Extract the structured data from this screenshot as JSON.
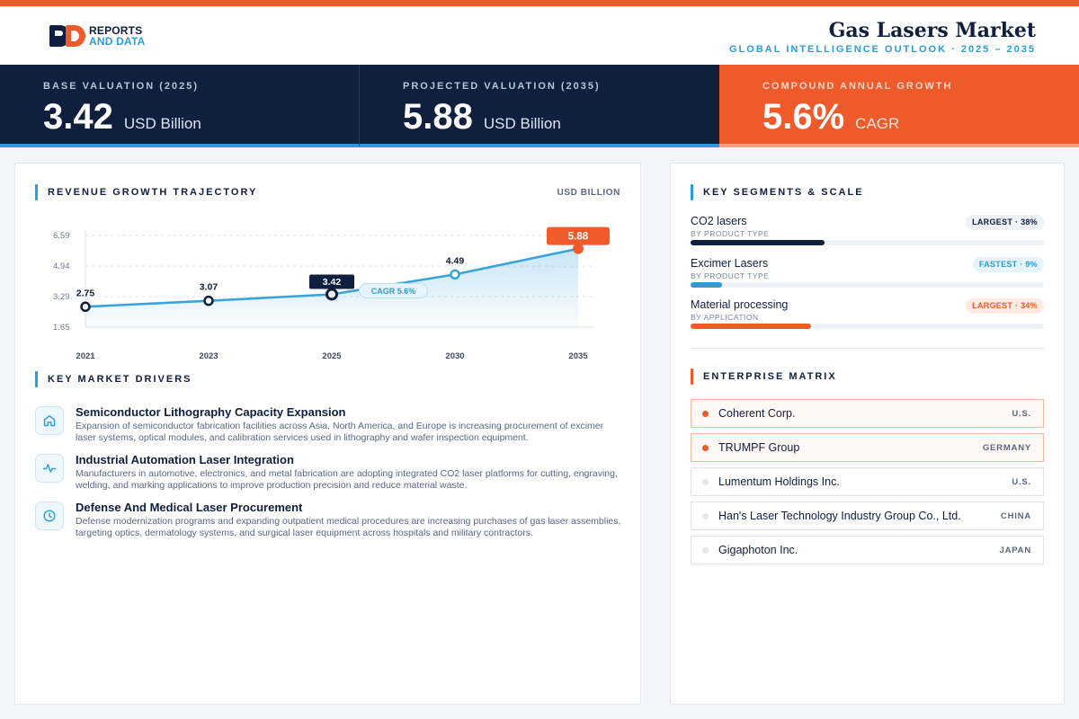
{
  "brand": {
    "line1": "REPORTS",
    "line2": "AND DATA"
  },
  "header": {
    "title": "Gas Lasers Market",
    "subtitle": "GLOBAL INTELLIGENCE OUTLOOK  ·  2025 – 2035"
  },
  "kpis": [
    {
      "label": "BASE VALUATION (2025)",
      "value": "3.42",
      "unit": "USD Billion"
    },
    {
      "label": "PROJECTED VALUATION (2035)",
      "value": "5.88",
      "unit": "USD Billion"
    },
    {
      "label": "COMPOUND ANNUAL GROWTH",
      "value": "5.6%",
      "unit": "CAGR"
    }
  ],
  "revenue": {
    "title": "REVENUE GROWTH TRAJECTORY",
    "units": "USD BILLION",
    "cagr_label": "CAGR 5.6%"
  },
  "chart_data": {
    "type": "area",
    "x": [
      "2021",
      "2023",
      "2025",
      "2030",
      "2035"
    ],
    "y": [
      2.75,
      3.07,
      3.42,
      4.49,
      5.88
    ],
    "data_labels": [
      "2.75",
      "3.07",
      "3.42",
      "4.49",
      "5.88"
    ],
    "yticks": [
      "6.59",
      "4.94",
      "3.29",
      "1.65"
    ],
    "ytick_values": [
      6.59,
      4.94,
      3.29,
      1.65
    ],
    "ylim": [
      1.65,
      6.59
    ],
    "grid": true,
    "legend": "none",
    "colors": {
      "line": "#3aa3d9",
      "highlight": "#0f1f3d",
      "final": "#ef5a2a"
    }
  },
  "drivers": {
    "title": "KEY MARKET DRIVERS",
    "items": [
      {
        "icon": "home-icon",
        "title": "Semiconductor Lithography Capacity Expansion",
        "desc": "Expansion of semiconductor fabrication facilities across Asia, North America, and Europe is increasing procurement of excimer laser systems, optical modules, and calibration services used in lithography and wafer inspection equipment."
      },
      {
        "icon": "activity-icon",
        "title": "Industrial Automation Laser Integration",
        "desc": "Manufacturers in automotive, electronics, and metal fabrication are adopting integrated CO2 laser platforms for cutting, engraving, welding, and marking applications to improve production precision and reduce material waste."
      },
      {
        "icon": "clock-icon",
        "title": "Defense And Medical Laser Procurement",
        "desc": "Defense modernization programs and expanding outpatient medical procedures are increasing purchases of gas laser assemblies, targeting optics, dermatology systems, and surgical laser equipment across hospitals and military contractors."
      }
    ]
  },
  "segments": {
    "title": "KEY SEGMENTS & SCALE",
    "items": [
      {
        "name": "CO2 lasers",
        "by": "BY PRODUCT TYPE",
        "badge": "LARGEST · 38%",
        "share": 0.38,
        "color": "#0f1f3d",
        "badge_style": "gray"
      },
      {
        "name": "Excimer Lasers",
        "by": "BY PRODUCT TYPE",
        "badge": "FASTEST · 9%",
        "share": 0.09,
        "color": "#2d9bd6",
        "badge_style": "blue"
      },
      {
        "name": "Material processing",
        "by": "BY APPLICATION",
        "badge": "LARGEST · 34%",
        "share": 0.34,
        "color": "#ef5a2a",
        "badge_style": "orange"
      }
    ]
  },
  "enterprise": {
    "title": "ENTERPRISE MATRIX",
    "items": [
      {
        "name": "Coherent Corp.",
        "country": "U.S.",
        "highlight": true
      },
      {
        "name": "TRUMPF Group",
        "country": "GERMANY",
        "highlight": true
      },
      {
        "name": "Lumentum Holdings Inc.",
        "country": "U.S.",
        "highlight": false
      },
      {
        "name": "Han's Laser Technology Industry Group Co., Ltd.",
        "country": "CHINA",
        "highlight": false
      },
      {
        "name": "Gigaphoton Inc.",
        "country": "JAPAN",
        "highlight": false
      }
    ]
  }
}
